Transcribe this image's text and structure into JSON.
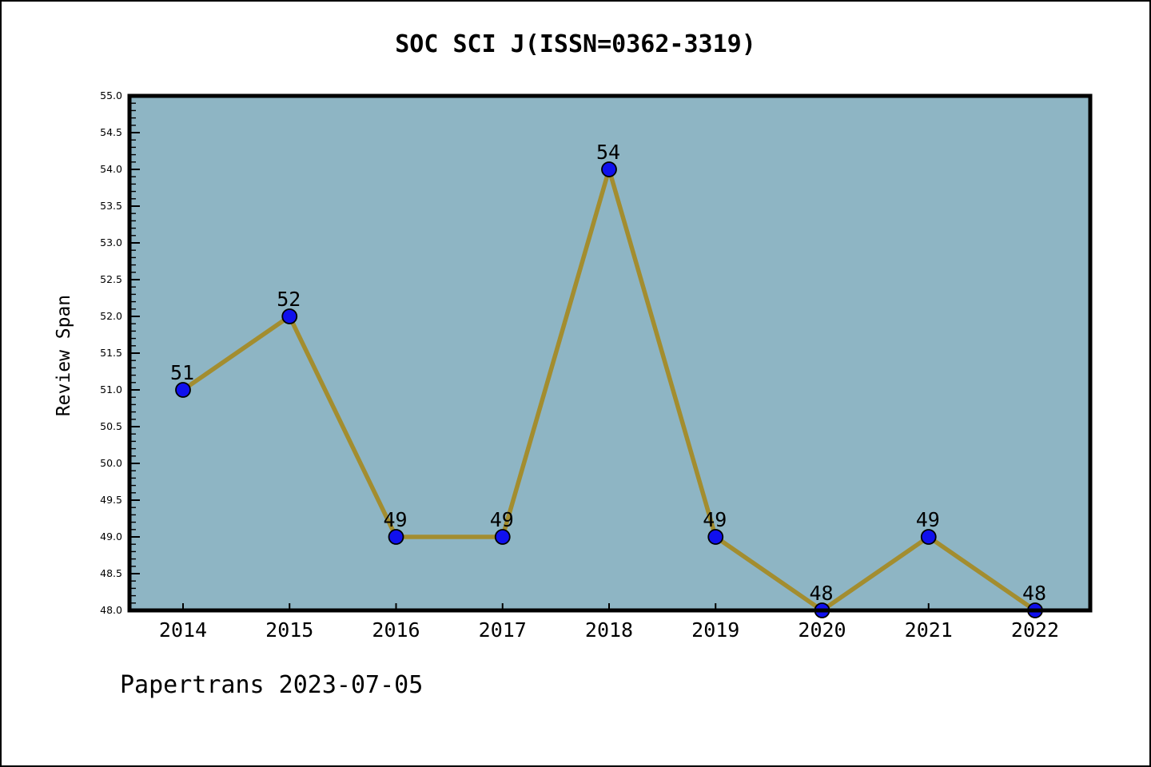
{
  "header": {
    "title": "SOC SCI J(ISSN=0362-3319)"
  },
  "footer": {
    "watermark": "Papertrans 2023-07-05"
  },
  "chart_data": {
    "type": "line",
    "title": "SOC SCI J(ISSN=0362-3319)",
    "xlabel": "",
    "ylabel": "Review Span",
    "categories": [
      "2014",
      "2015",
      "2016",
      "2017",
      "2018",
      "2019",
      "2020",
      "2021",
      "2022"
    ],
    "values": [
      51,
      52,
      49,
      49,
      54,
      49,
      48,
      49,
      48
    ],
    "point_labels": [
      "51",
      "52",
      "49",
      "49",
      "54",
      "49",
      "48",
      "49",
      "48"
    ],
    "ylim": [
      48.0,
      55.0
    ],
    "ytick_step": 0.5,
    "yminor_step": 0.1,
    "ytick_decimals": 1,
    "grid": false,
    "legend_position": "none",
    "annotation": "Papertrans 2023-07-05",
    "colors": {
      "plot_background": "#8eb5c4",
      "line": "#a38d2f",
      "marker_fill": "#1010ee",
      "marker_edge": "#000000",
      "spine": "#000000",
      "text": "#000000"
    }
  }
}
